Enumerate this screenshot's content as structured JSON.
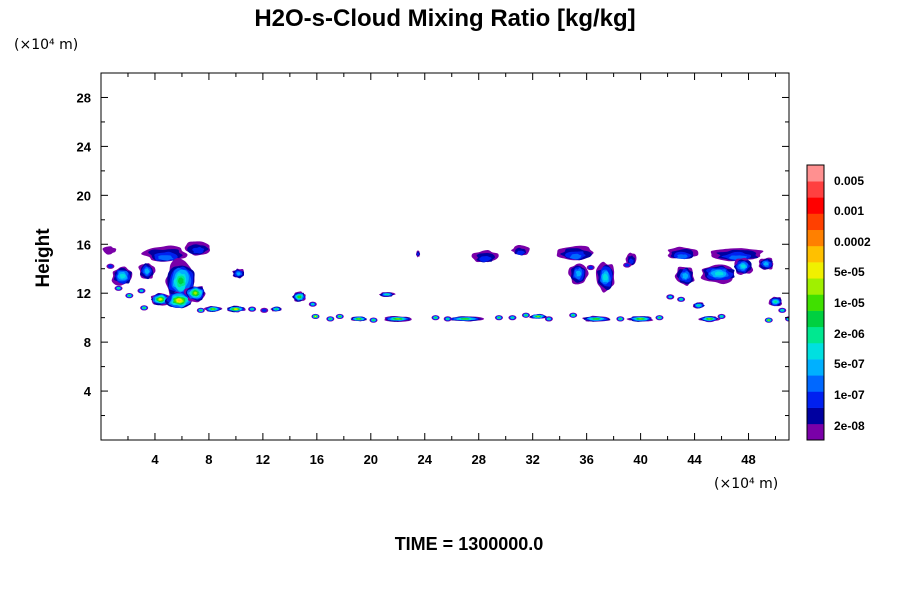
{
  "chart_data": {
    "type": "contour",
    "title": "H2O-s-Cloud Mixing Ratio [kg/kg]",
    "ylabel": "Height",
    "y_unit": "(×10⁴ m)",
    "x_unit": "(×10⁴ m)",
    "footer": "TIME = 1300000.0",
    "xlim": [
      0,
      51
    ],
    "ylim": [
      0,
      30
    ],
    "x_ticks": [
      "4",
      "8",
      "12",
      "16",
      "20",
      "24",
      "28",
      "32",
      "36",
      "40",
      "44",
      "48"
    ],
    "x_tick_values": [
      4,
      8,
      12,
      16,
      20,
      24,
      28,
      32,
      36,
      40,
      44,
      48
    ],
    "y_ticks": [
      "4",
      "8",
      "12",
      "16",
      "20",
      "24",
      "28"
    ],
    "y_tick_values": [
      4,
      8,
      12,
      16,
      20,
      24,
      28
    ],
    "grid": false,
    "colorbar": {
      "placement": "right",
      "levels": [
        "0.005",
        "0.001",
        "0.0002",
        "5e-05",
        "1e-05",
        "2e-06",
        "5e-07",
        "1e-07",
        "2e-08"
      ],
      "colors": [
        "#7a00a8",
        "#0000a0",
        "#0020f0",
        "#0068ff",
        "#00b0ff",
        "#00e0e0",
        "#00e890",
        "#00d040",
        "#40e000",
        "#a0f000",
        "#f0f000",
        "#ffc000",
        "#ff8000",
        "#ff4000",
        "#ff0000",
        "#ff4040",
        "#ff9090"
      ]
    },
    "features": [
      {
        "type": "anvil",
        "x": 4.8,
        "y": 15.2,
        "w": 3.2,
        "h": 1.3,
        "top": 15.8,
        "depth": 4
      },
      {
        "type": "anvil",
        "x": 7.2,
        "y": 15.7,
        "w": 2.0,
        "h": 1.1,
        "top": 15.8,
        "depth": 3
      },
      {
        "type": "anvil",
        "x": 0.6,
        "y": 15.5,
        "w": 1.0,
        "h": 0.6,
        "top": 15.6,
        "depth": 1
      },
      {
        "type": "core",
        "x": 1.6,
        "y": 13.4,
        "w": 1.6,
        "h": 1.6,
        "depth": 6
      },
      {
        "type": "core",
        "x": 3.4,
        "y": 13.8,
        "w": 1.2,
        "h": 1.4,
        "depth": 5
      },
      {
        "type": "core",
        "x": 5.9,
        "y": 13.0,
        "w": 2.2,
        "h": 3.3,
        "depth": 8
      },
      {
        "type": "core",
        "x": 4.4,
        "y": 11.5,
        "w": 1.4,
        "h": 1.0,
        "depth": 11
      },
      {
        "type": "core",
        "x": 5.8,
        "y": 11.4,
        "w": 2.0,
        "h": 1.4,
        "depth": 12
      },
      {
        "type": "core",
        "x": 7.0,
        "y": 12.0,
        "w": 1.5,
        "h": 1.3,
        "depth": 10
      },
      {
        "type": "core",
        "x": 10.2,
        "y": 13.6,
        "w": 0.9,
        "h": 0.8,
        "depth": 5
      },
      {
        "type": "blob",
        "x": 8.3,
        "y": 10.7,
        "w": 1.2,
        "h": 0.45,
        "depth": 10
      },
      {
        "type": "blob",
        "x": 10.0,
        "y": 10.7,
        "w": 1.3,
        "h": 0.5,
        "depth": 12
      },
      {
        "type": "blob",
        "x": 13.0,
        "y": 10.7,
        "w": 0.8,
        "h": 0.4,
        "depth": 8
      },
      {
        "type": "blob",
        "x": 14.7,
        "y": 11.7,
        "w": 1.0,
        "h": 0.8,
        "depth": 9
      },
      {
        "type": "blob",
        "x": 19.1,
        "y": 9.9,
        "w": 1.2,
        "h": 0.4,
        "depth": 10
      },
      {
        "type": "blob",
        "x": 21.2,
        "y": 11.9,
        "w": 1.1,
        "h": 0.4,
        "depth": 7
      },
      {
        "type": "blob",
        "x": 22.0,
        "y": 9.9,
        "w": 2.0,
        "h": 0.45,
        "depth": 10
      },
      {
        "type": "blob",
        "x": 27.0,
        "y": 9.9,
        "w": 2.4,
        "h": 0.4,
        "depth": 9
      },
      {
        "type": "blob",
        "x": 32.4,
        "y": 10.1,
        "w": 1.2,
        "h": 0.4,
        "depth": 10
      },
      {
        "type": "blob",
        "x": 36.7,
        "y": 9.9,
        "w": 2.0,
        "h": 0.45,
        "depth": 9
      },
      {
        "type": "blob",
        "x": 40.0,
        "y": 9.9,
        "w": 1.8,
        "h": 0.45,
        "depth": 10
      },
      {
        "type": "blob",
        "x": 45.1,
        "y": 9.9,
        "w": 1.4,
        "h": 0.45,
        "depth": 10
      },
      {
        "type": "blob",
        "x": 50.0,
        "y": 11.3,
        "w": 1.0,
        "h": 0.8,
        "depth": 7
      },
      {
        "type": "anvil",
        "x": 28.5,
        "y": 15.0,
        "w": 1.8,
        "h": 1.0,
        "top": 15.5,
        "depth": 3
      },
      {
        "type": "anvil",
        "x": 31.1,
        "y": 15.5,
        "w": 1.3,
        "h": 0.8,
        "top": 15.8,
        "depth": 3
      },
      {
        "type": "anvil",
        "x": 35.2,
        "y": 15.3,
        "w": 2.6,
        "h": 1.2,
        "top": 15.8,
        "depth": 4
      },
      {
        "type": "core",
        "x": 35.4,
        "y": 13.6,
        "w": 1.3,
        "h": 1.8,
        "depth": 5
      },
      {
        "type": "core",
        "x": 37.4,
        "y": 13.3,
        "w": 1.4,
        "h": 2.3,
        "depth": 6
      },
      {
        "type": "anvil",
        "x": 39.3,
        "y": 14.8,
        "w": 0.8,
        "h": 1.0,
        "top": 15.0,
        "depth": 3
      },
      {
        "type": "anvil",
        "x": 43.1,
        "y": 15.3,
        "w": 2.2,
        "h": 1.0,
        "top": 15.8,
        "depth": 4
      },
      {
        "type": "anvil",
        "x": 47.2,
        "y": 15.2,
        "w": 3.8,
        "h": 1.1,
        "top": 15.8,
        "depth": 4
      },
      {
        "type": "core",
        "x": 43.3,
        "y": 13.4,
        "w": 1.4,
        "h": 1.6,
        "depth": 5
      },
      {
        "type": "core",
        "x": 45.8,
        "y": 13.6,
        "w": 2.6,
        "h": 1.5,
        "depth": 6
      },
      {
        "type": "core",
        "x": 47.6,
        "y": 14.2,
        "w": 1.4,
        "h": 1.3,
        "depth": 6
      },
      {
        "type": "core",
        "x": 49.3,
        "y": 14.4,
        "w": 1.2,
        "h": 1.0,
        "depth": 5
      },
      {
        "type": "blob",
        "x": 23.5,
        "y": 15.2,
        "w": 0.3,
        "h": 0.5,
        "depth": 3
      },
      {
        "type": "blob",
        "x": 44.3,
        "y": 11.0,
        "w": 0.9,
        "h": 0.5,
        "depth": 7
      }
    ],
    "dots": [
      {
        "x": 1.3,
        "y": 12.4,
        "depth": 8
      },
      {
        "x": 2.1,
        "y": 11.8,
        "depth": 9
      },
      {
        "x": 3.0,
        "y": 12.2,
        "depth": 7
      },
      {
        "x": 3.2,
        "y": 10.8,
        "depth": 9
      },
      {
        "x": 7.4,
        "y": 10.6,
        "depth": 9
      },
      {
        "x": 11.2,
        "y": 10.7,
        "depth": 8
      },
      {
        "x": 12.1,
        "y": 10.6,
        "depth": 4
      },
      {
        "x": 15.7,
        "y": 11.1,
        "depth": 7
      },
      {
        "x": 15.9,
        "y": 10.1,
        "depth": 12
      },
      {
        "x": 17.0,
        "y": 9.9,
        "depth": 9
      },
      {
        "x": 17.7,
        "y": 10.1,
        "depth": 10
      },
      {
        "x": 20.2,
        "y": 9.8,
        "depth": 9
      },
      {
        "x": 24.8,
        "y": 10.0,
        "depth": 9
      },
      {
        "x": 25.7,
        "y": 9.9,
        "depth": 8
      },
      {
        "x": 29.5,
        "y": 10.0,
        "depth": 9
      },
      {
        "x": 30.5,
        "y": 10.0,
        "depth": 8
      },
      {
        "x": 31.5,
        "y": 10.2,
        "depth": 9
      },
      {
        "x": 33.2,
        "y": 9.9,
        "depth": 8
      },
      {
        "x": 35.0,
        "y": 10.2,
        "depth": 9
      },
      {
        "x": 38.5,
        "y": 9.9,
        "depth": 9
      },
      {
        "x": 42.2,
        "y": 11.7,
        "depth": 7
      },
      {
        "x": 43.0,
        "y": 11.5,
        "depth": 8
      },
      {
        "x": 46.0,
        "y": 10.1,
        "depth": 8
      },
      {
        "x": 49.5,
        "y": 9.8,
        "depth": 11
      },
      {
        "x": 50.5,
        "y": 10.6,
        "depth": 8
      },
      {
        "x": 51.0,
        "y": 9.9,
        "depth": 9
      },
      {
        "x": 41.4,
        "y": 10.0,
        "depth": 9
      },
      {
        "x": 36.3,
        "y": 14.1,
        "depth": 4
      },
      {
        "x": 39.0,
        "y": 14.3,
        "depth": 4
      },
      {
        "x": 0.7,
        "y": 14.2,
        "depth": 4
      }
    ]
  }
}
